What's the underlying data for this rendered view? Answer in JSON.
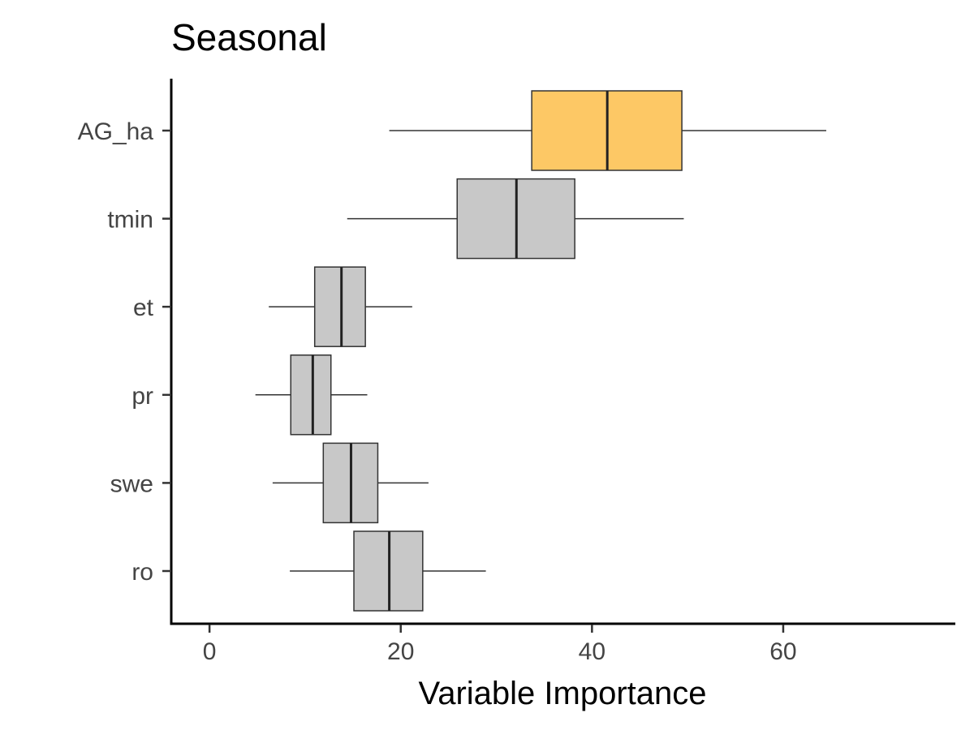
{
  "chart_data": {
    "type": "boxplot",
    "title": "Seasonal",
    "xlabel": "Variable Importance",
    "ylabel": "",
    "xlim": [
      -4,
      78
    ],
    "x_ticks": [
      0,
      20,
      40,
      60
    ],
    "grid": false,
    "categories": [
      "AG_ha",
      "tmin",
      "et",
      "pr",
      "swe",
      "ro"
    ],
    "boxes": [
      {
        "category": "AG_ha",
        "whisker_low": 18.8,
        "q1": 33.7,
        "median": 41.6,
        "q3": 49.4,
        "whisker_high": 64.5,
        "fill": "#FDC865"
      },
      {
        "category": "tmin",
        "whisker_low": 14.4,
        "q1": 25.9,
        "median": 32.1,
        "q3": 38.2,
        "whisker_high": 49.6,
        "fill": "#C8C8C8"
      },
      {
        "category": "et",
        "whisker_low": 6.2,
        "q1": 11.0,
        "median": 13.8,
        "q3": 16.3,
        "whisker_high": 21.2,
        "fill": "#C8C8C8"
      },
      {
        "category": "pr",
        "whisker_low": 4.8,
        "q1": 8.5,
        "median": 10.8,
        "q3": 12.7,
        "whisker_high": 16.5,
        "fill": "#C8C8C8"
      },
      {
        "category": "swe",
        "whisker_low": 6.6,
        "q1": 11.9,
        "median": 14.8,
        "q3": 17.6,
        "whisker_high": 22.9,
        "fill": "#C8C8C8"
      },
      {
        "category": "ro",
        "whisker_low": 8.4,
        "q1": 15.1,
        "median": 18.8,
        "q3": 22.3,
        "whisker_high": 28.9,
        "fill": "#C8C8C8"
      }
    ]
  }
}
